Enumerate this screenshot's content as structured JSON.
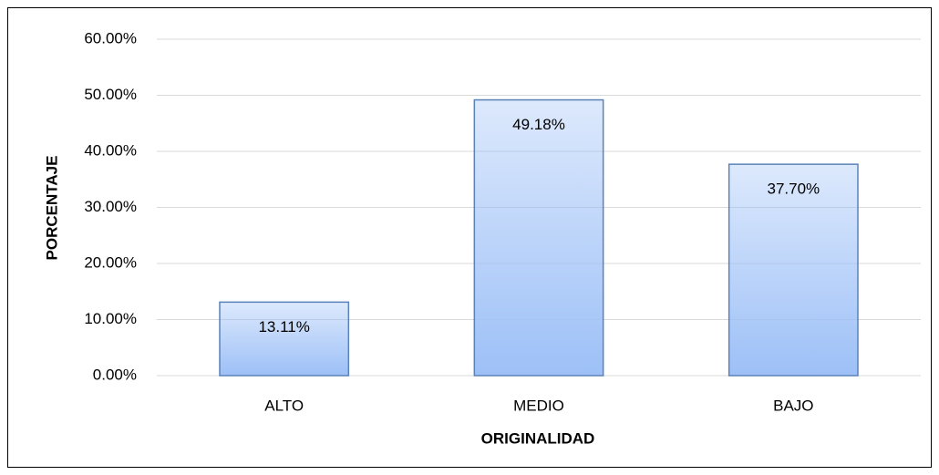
{
  "chart_data": {
    "type": "bar",
    "categories": [
      "ALTO",
      "MEDIO",
      "BAJO"
    ],
    "values": [
      13.11,
      49.18,
      37.7
    ],
    "value_labels": [
      "13.11%",
      "49.18%",
      "37.70%"
    ],
    "color": "#9dc0f7",
    "edge_color": "#5b82b8",
    "ylim": [
      0,
      60
    ],
    "yticks": [
      {
        "value": 0,
        "label": "0.00%"
      },
      {
        "value": 10,
        "label": "10.00%"
      },
      {
        "value": 20,
        "label": "20.00%"
      },
      {
        "value": 30,
        "label": "30.00%"
      },
      {
        "value": 40,
        "label": "40.00%"
      },
      {
        "value": 50,
        "label": "50.00%"
      },
      {
        "value": 60,
        "label": "60.00%"
      }
    ],
    "ylabel": "PORCENTAJE",
    "xlabel": "ORIGINALIDAD",
    "grid": true
  }
}
